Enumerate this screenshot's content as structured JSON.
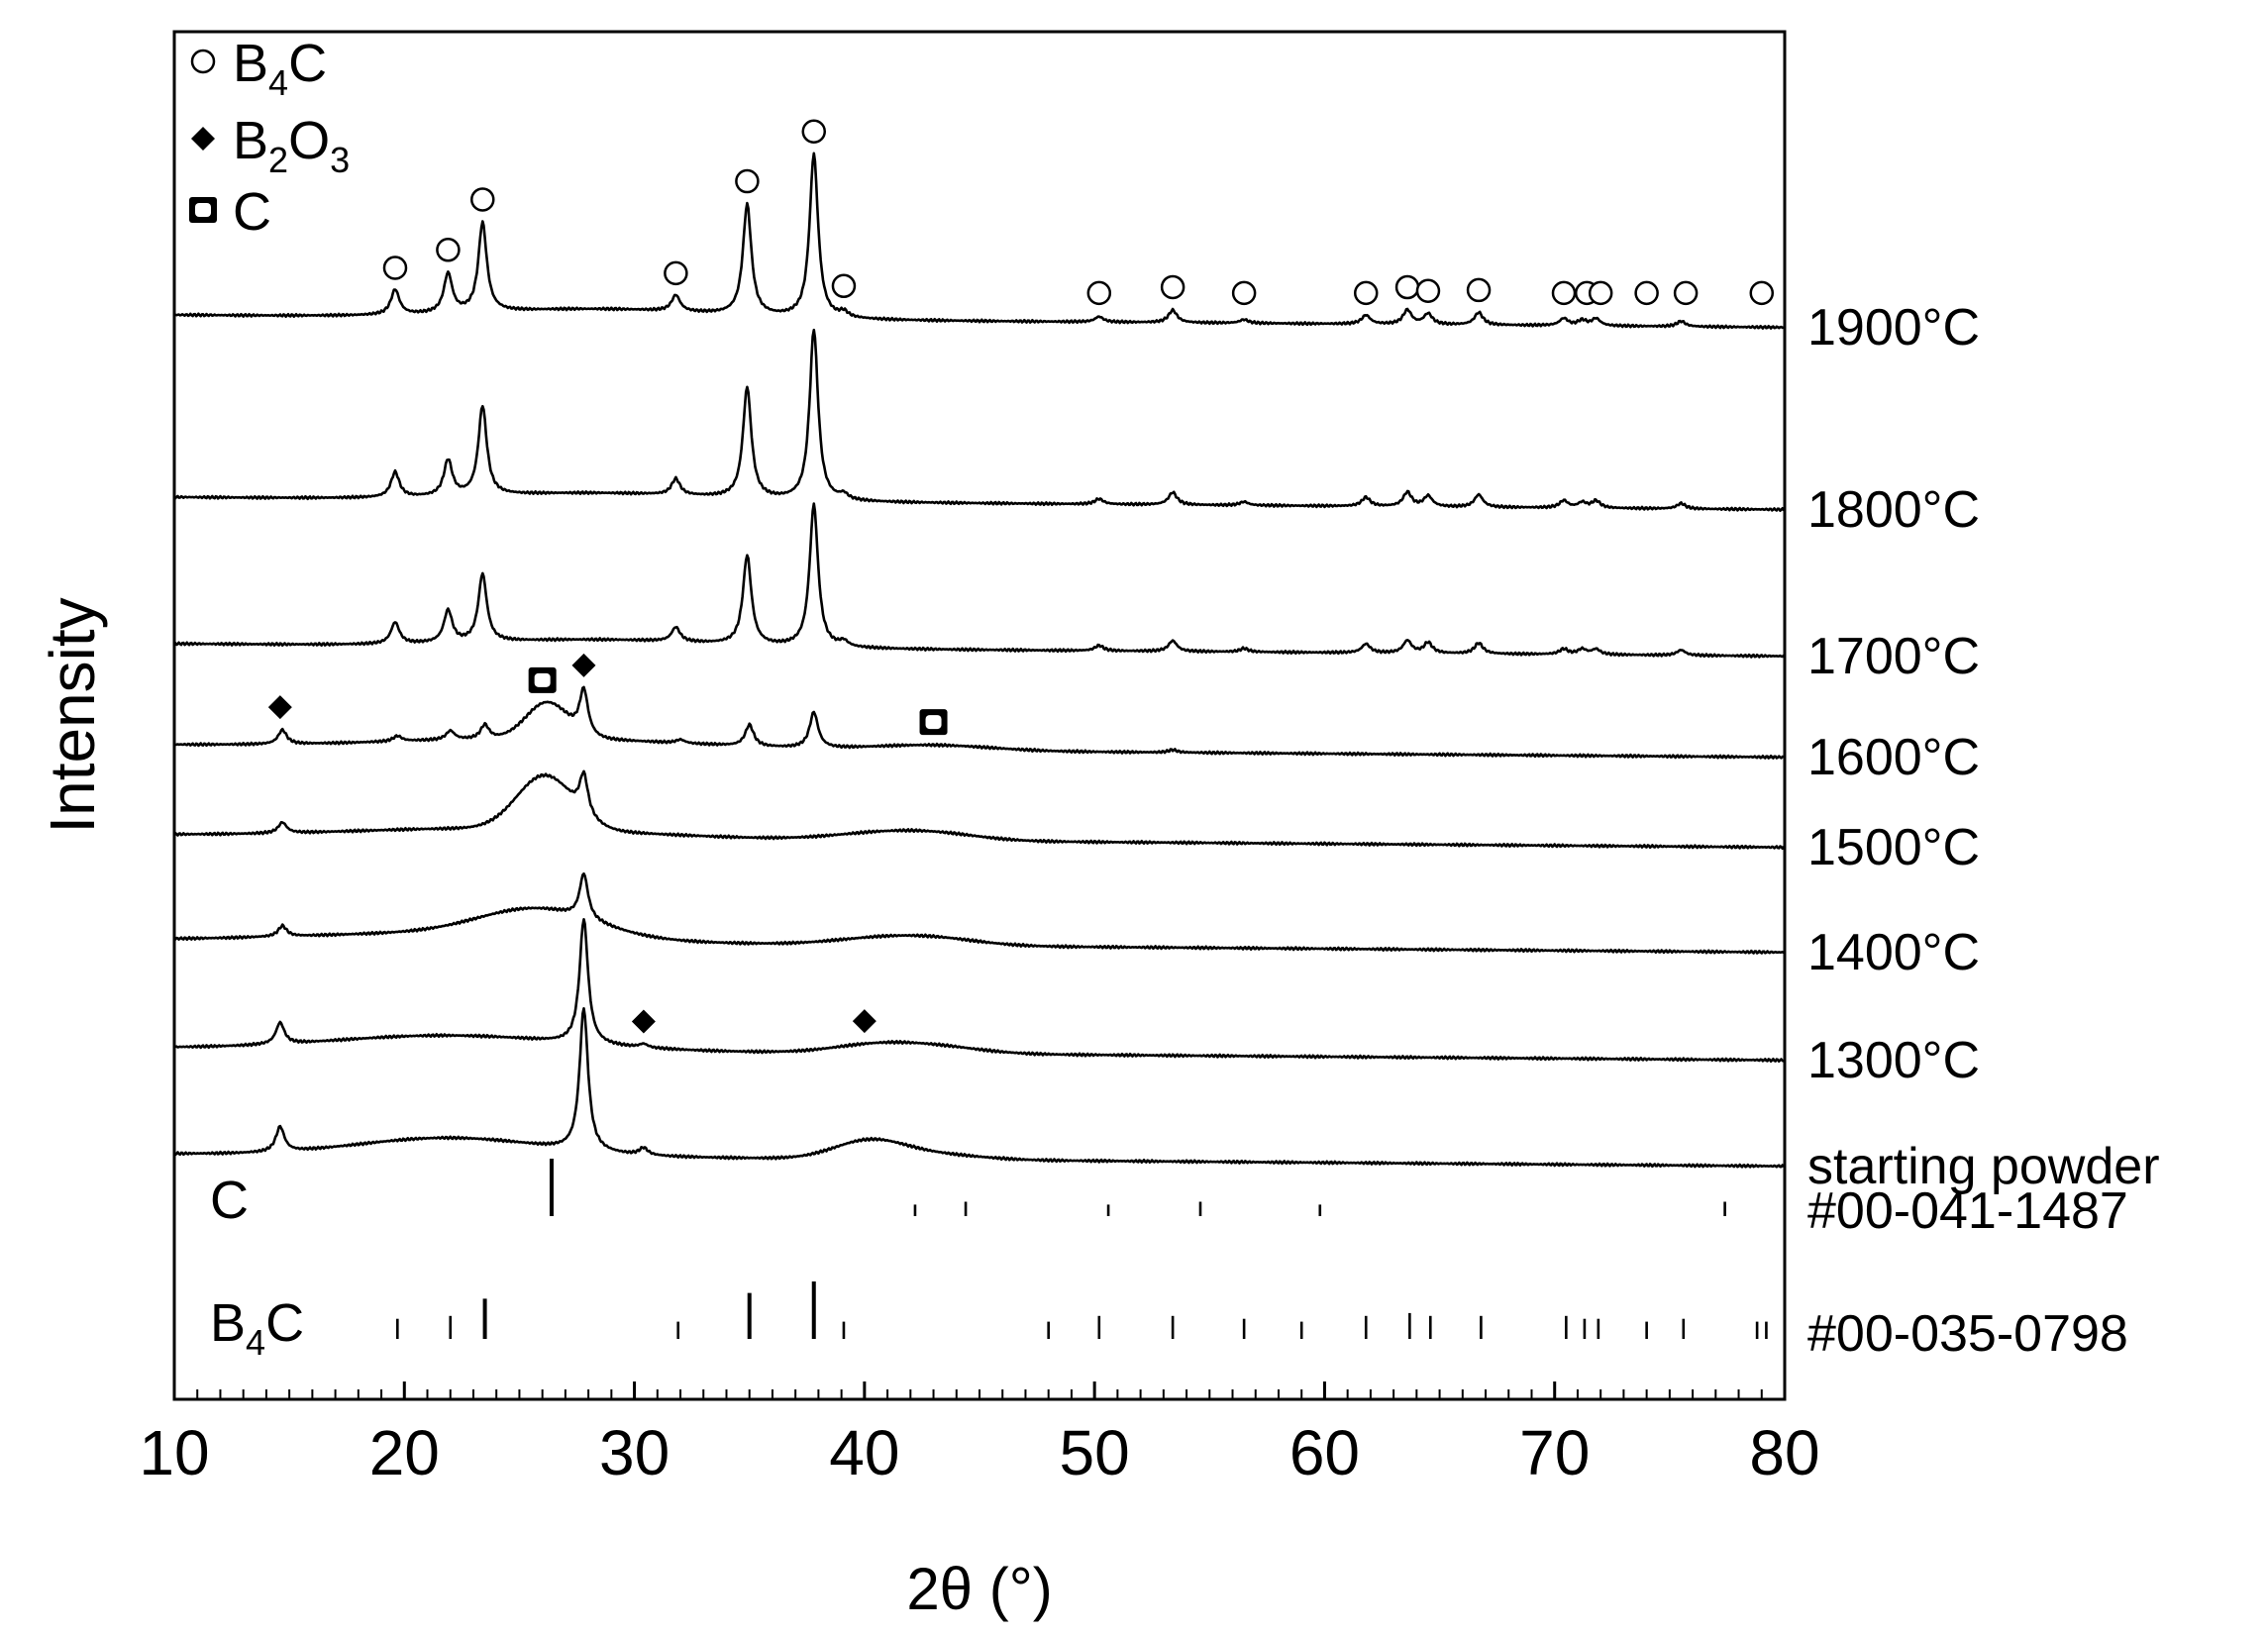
{
  "chart_data": {
    "type": "line",
    "title": "",
    "xlabel": "2θ (°)",
    "ylabel": "Intensity",
    "xlim": [
      10,
      80
    ],
    "x_ticks": [
      10,
      20,
      30,
      40,
      50,
      60,
      70,
      80
    ],
    "x_minor_step": 1,
    "y_ticks_shown": false,
    "grid": false,
    "line_color": "#000000",
    "legend": {
      "placement": "top-left",
      "entries": [
        {
          "symbol": "circle-open",
          "main": "B",
          "sub": "4",
          "tail": "C"
        },
        {
          "symbol": "diamond-filled",
          "main": "B",
          "sub": "2",
          "tail": "O",
          "sub2": "3"
        },
        {
          "symbol": "square-open",
          "main": "C",
          "sub": "",
          "tail": ""
        }
      ]
    },
    "series": [
      {
        "name": "1900°C",
        "peaks": [
          [
            19.6,
            0.14
          ],
          [
            21.9,
            0.22
          ],
          [
            23.4,
            0.5
          ],
          [
            31.8,
            0.09
          ],
          [
            34.9,
            0.62
          ],
          [
            37.8,
            0.92
          ],
          [
            39.1,
            0.03
          ],
          [
            50.2,
            0.03
          ],
          [
            53.4,
            0.07
          ],
          [
            56.5,
            0.02
          ],
          [
            61.8,
            0.05
          ],
          [
            63.6,
            0.08
          ],
          [
            64.5,
            0.06
          ],
          [
            66.7,
            0.07
          ],
          [
            70.4,
            0.04
          ],
          [
            71.2,
            0.03
          ],
          [
            71.8,
            0.04
          ],
          [
            75.5,
            0.03
          ]
        ],
        "humps": [
          [
            28.5,
            0.05,
            5
          ]
        ]
      },
      {
        "name": "1800°C",
        "peaks": [
          [
            19.6,
            0.14
          ],
          [
            21.9,
            0.2
          ],
          [
            23.4,
            0.5
          ],
          [
            31.8,
            0.09
          ],
          [
            34.9,
            0.62
          ],
          [
            37.8,
            0.96
          ],
          [
            39.1,
            0.03
          ],
          [
            50.2,
            0.03
          ],
          [
            53.4,
            0.07
          ],
          [
            56.5,
            0.02
          ],
          [
            61.8,
            0.05
          ],
          [
            63.6,
            0.08
          ],
          [
            64.5,
            0.06
          ],
          [
            66.7,
            0.07
          ],
          [
            70.4,
            0.04
          ],
          [
            71.2,
            0.03
          ],
          [
            71.8,
            0.04
          ],
          [
            75.5,
            0.03
          ]
        ],
        "humps": [
          [
            28.5,
            0.04,
            5
          ]
        ]
      },
      {
        "name": "1700°C",
        "peaks": [
          [
            19.6,
            0.12
          ],
          [
            21.9,
            0.18
          ],
          [
            23.4,
            0.38
          ],
          [
            31.8,
            0.08
          ],
          [
            34.9,
            0.5
          ],
          [
            37.8,
            0.8
          ],
          [
            39.1,
            0.03
          ],
          [
            50.2,
            0.03
          ],
          [
            53.4,
            0.06
          ],
          [
            56.5,
            0.02
          ],
          [
            61.8,
            0.05
          ],
          [
            63.6,
            0.07
          ],
          [
            64.5,
            0.06
          ],
          [
            66.7,
            0.06
          ],
          [
            70.4,
            0.03
          ],
          [
            71.2,
            0.03
          ],
          [
            71.8,
            0.03
          ],
          [
            75.5,
            0.03
          ]
        ],
        "humps": [
          [
            28.5,
            0.04,
            5
          ]
        ]
      },
      {
        "name": "1600°C",
        "peaks": [
          [
            14.7,
            0.08
          ],
          [
            19.7,
            0.03
          ],
          [
            22.0,
            0.05
          ],
          [
            23.5,
            0.08
          ],
          [
            27.8,
            0.25
          ],
          [
            32.0,
            0.02
          ],
          [
            35.0,
            0.12
          ],
          [
            37.8,
            0.2
          ],
          [
            53.4,
            0.015
          ]
        ],
        "humps": [
          [
            26.2,
            0.2,
            0.9
          ],
          [
            26.0,
            0.05,
            6
          ],
          [
            43.0,
            0.03,
            2.5
          ]
        ]
      },
      {
        "name": "1500°C",
        "peaks": [
          [
            14.7,
            0.06
          ],
          [
            27.8,
            0.22
          ]
        ],
        "humps": [
          [
            26.1,
            0.3,
            1.2
          ],
          [
            24.0,
            0.05,
            6
          ],
          [
            40.3,
            0.03,
            2
          ],
          [
            43.0,
            0.04,
            2
          ]
        ]
      },
      {
        "name": "1400°C",
        "peaks": [
          [
            14.7,
            0.06
          ],
          [
            27.8,
            0.25
          ]
        ],
        "humps": [
          [
            25.8,
            0.15,
            2.5
          ],
          [
            22.0,
            0.05,
            6
          ],
          [
            40.3,
            0.03,
            2
          ],
          [
            43.0,
            0.04,
            2
          ]
        ]
      },
      {
        "name": "1300°C",
        "peaks": [
          [
            14.6,
            0.12
          ],
          [
            27.8,
            0.7
          ],
          [
            30.4,
            0.02
          ]
        ],
        "humps": [
          [
            22.0,
            0.08,
            5
          ],
          [
            40.3,
            0.04,
            1.8
          ],
          [
            43.0,
            0.04,
            2
          ]
        ]
      },
      {
        "name": "starting powder",
        "peaks": [
          [
            14.6,
            0.14
          ],
          [
            27.8,
            0.8
          ],
          [
            30.4,
            0.04
          ]
        ],
        "humps": [
          [
            22.0,
            0.1,
            4
          ],
          [
            40.2,
            0.1,
            1.5
          ],
          [
            43.0,
            0.03,
            2
          ]
        ]
      }
    ],
    "markers": [
      {
        "type": "circle-open",
        "x": 19.6,
        "series": "1900°C"
      },
      {
        "type": "circle-open",
        "x": 21.9,
        "series": "1900°C"
      },
      {
        "type": "circle-open",
        "x": 23.4,
        "series": "1900°C"
      },
      {
        "type": "circle-open",
        "x": 31.8,
        "series": "1900°C"
      },
      {
        "type": "circle-open",
        "x": 34.9,
        "series": "1900°C"
      },
      {
        "type": "circle-open",
        "x": 37.8,
        "series": "1900°C"
      },
      {
        "type": "circle-open",
        "x": 39.1,
        "series": "1900°C"
      },
      {
        "type": "circle-open",
        "x": 50.2,
        "series": "1900°C"
      },
      {
        "type": "circle-open",
        "x": 53.4,
        "series": "1900°C"
      },
      {
        "type": "circle-open",
        "x": 56.5,
        "series": "1900°C"
      },
      {
        "type": "circle-open",
        "x": 61.8,
        "series": "1900°C"
      },
      {
        "type": "circle-open",
        "x": 63.6,
        "series": "1900°C"
      },
      {
        "type": "circle-open",
        "x": 64.5,
        "series": "1900°C"
      },
      {
        "type": "circle-open",
        "x": 66.7,
        "series": "1900°C"
      },
      {
        "type": "circle-open",
        "x": 70.4,
        "series": "1900°C"
      },
      {
        "type": "circle-open",
        "x": 71.4,
        "series": "1900°C"
      },
      {
        "type": "circle-open",
        "x": 72.0,
        "series": "1900°C"
      },
      {
        "type": "circle-open",
        "x": 74.0,
        "series": "1900°C"
      },
      {
        "type": "circle-open",
        "x": 75.7,
        "series": "1900°C"
      },
      {
        "type": "circle-open",
        "x": 79.0,
        "series": "1900°C"
      },
      {
        "type": "diamond-filled",
        "x": 14.6,
        "series": "1600°C"
      },
      {
        "type": "square-open",
        "x": 26.0,
        "series": "1600°C"
      },
      {
        "type": "diamond-filled",
        "x": 27.8,
        "series": "1600°C"
      },
      {
        "type": "square-open",
        "x": 43.0,
        "series": "1600°C"
      },
      {
        "type": "diamond-filled",
        "x": 30.4,
        "series": "1300°C"
      },
      {
        "type": "diamond-filled",
        "x": 40.0,
        "series": "1300°C"
      }
    ],
    "references": [
      {
        "phase_main": "C",
        "phase_sub": "",
        "phase_tail": "",
        "card": "#00-041-1487",
        "lines": [
          [
            26.4,
            1.0
          ],
          [
            42.2,
            0.2
          ],
          [
            44.4,
            0.25
          ],
          [
            50.6,
            0.2
          ],
          [
            54.6,
            0.25
          ],
          [
            59.8,
            0.2
          ],
          [
            77.4,
            0.25
          ]
        ]
      },
      {
        "phase_main": "B",
        "phase_sub": "4",
        "phase_tail": "C",
        "card": "#00-035-0798",
        "lines": [
          [
            19.7,
            0.35
          ],
          [
            22.0,
            0.4
          ],
          [
            23.5,
            0.7
          ],
          [
            31.9,
            0.3
          ],
          [
            35.0,
            0.8
          ],
          [
            37.8,
            1.0
          ],
          [
            39.1,
            0.3
          ],
          [
            48.0,
            0.3
          ],
          [
            50.2,
            0.4
          ],
          [
            53.4,
            0.4
          ],
          [
            56.5,
            0.35
          ],
          [
            59.0,
            0.3
          ],
          [
            61.8,
            0.4
          ],
          [
            63.7,
            0.45
          ],
          [
            64.6,
            0.4
          ],
          [
            66.8,
            0.4
          ],
          [
            70.5,
            0.4
          ],
          [
            71.3,
            0.35
          ],
          [
            71.9,
            0.35
          ],
          [
            74.0,
            0.3
          ],
          [
            75.6,
            0.35
          ],
          [
            78.8,
            0.3
          ],
          [
            79.2,
            0.3
          ]
        ]
      }
    ]
  }
}
